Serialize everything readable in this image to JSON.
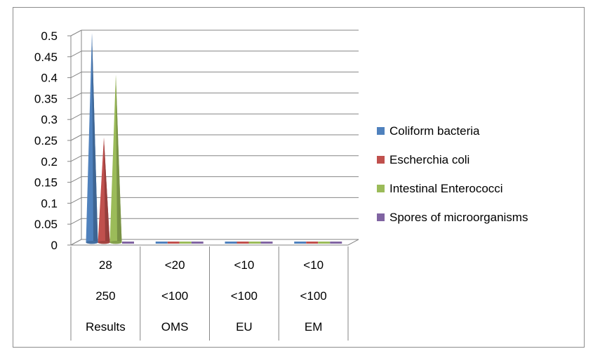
{
  "chart_data": {
    "type": "bar",
    "style": "3d-cone",
    "categories": [
      "Results",
      "OMS",
      "EU",
      "EM"
    ],
    "category_rows": [
      [
        "28",
        "<20",
        "<10",
        "<10"
      ],
      [
        "250",
        "<100",
        "<100",
        "<100"
      ],
      [
        "Results",
        "OMS",
        "EU",
        "EM"
      ]
    ],
    "series": [
      {
        "name": "Coliform bacteria",
        "color": "#4f81bd",
        "values": [
          0.5,
          0,
          0,
          0
        ]
      },
      {
        "name": "Escherchia coli",
        "color": "#c0504d",
        "values": [
          0.25,
          0,
          0,
          0
        ]
      },
      {
        "name": "Intestinal Enterococci",
        "color": "#9bbb59",
        "values": [
          0.4,
          0,
          0,
          0
        ]
      },
      {
        "name": "Spores of microorganisms",
        "color": "#8064a2",
        "values": [
          0,
          0,
          0,
          0
        ]
      }
    ],
    "yticks": [
      "0",
      "0.05",
      "0.1",
      "0.15",
      "0.2",
      "0.25",
      "0.3",
      "0.35",
      "0.4",
      "0.45",
      "0.5"
    ],
    "ylim": [
      0,
      0.5
    ],
    "grid": true,
    "legend": "right",
    "title": "",
    "xlabel": "",
    "ylabel": ""
  }
}
